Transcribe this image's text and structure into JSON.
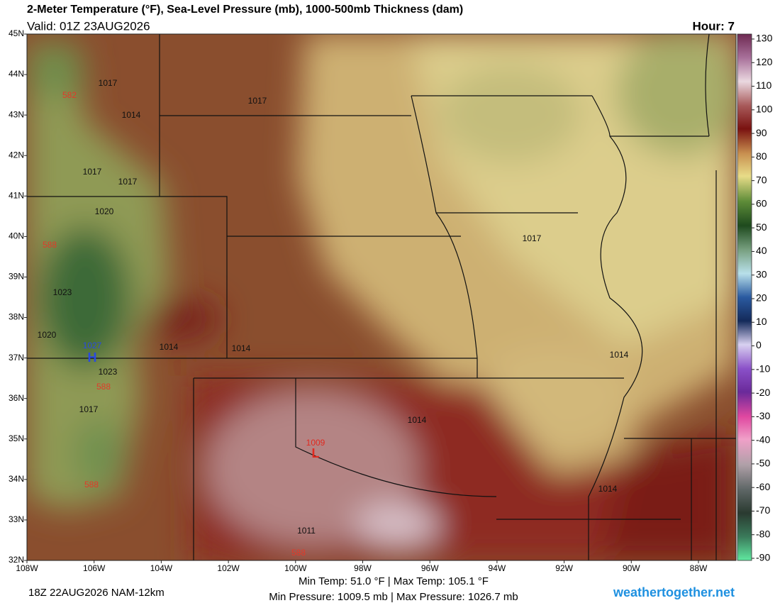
{
  "header": {
    "title": "2-Meter Temperature (°F), Sea-Level Pressure (mb), 1000-500mb Thickness (dam)",
    "valid": "Valid: 01Z 23AUG2026",
    "hour": "Hour: 7"
  },
  "map": {
    "lat_labels": [
      "45N",
      "44N",
      "43N",
      "42N",
      "41N",
      "40N",
      "39N",
      "38N",
      "37N",
      "36N",
      "35N",
      "34N",
      "33N",
      "32N"
    ],
    "lon_labels": [
      "108W",
      "106W",
      "104W",
      "102W",
      "100W",
      "98W",
      "96W",
      "94W",
      "92W",
      "90W",
      "88W"
    ],
    "isobar_labels": [
      "1017",
      "1017",
      "1014",
      "1017",
      "1017",
      "1020",
      "1023",
      "1020",
      "1014",
      "1014",
      "1023",
      "1017",
      "1017",
      "1014",
      "1014",
      "1014",
      "1011"
    ],
    "thickness_labels": [
      "582",
      "588",
      "588",
      "588",
      "588"
    ],
    "high": {
      "pressure": "1027",
      "symbol": "H"
    },
    "low": {
      "pressure": "1009",
      "symbol": "L"
    }
  },
  "colorbar": {
    "ticks": [
      130,
      120,
      110,
      100,
      90,
      80,
      70,
      60,
      50,
      40,
      30,
      20,
      10,
      0,
      -10,
      -20,
      -30,
      -40,
      -50,
      -60,
      -70,
      -80,
      -90
    ]
  },
  "footer": {
    "run": "18Z 22AUG2026 NAM-12km",
    "temps": "Min Temp:  51.0 °F | Max Temp: 105.1 °F",
    "pressures": "Min Pressure: 1009.5 mb | Max Pressure: 1026.7 mb",
    "site": "weathertogether.net"
  }
}
